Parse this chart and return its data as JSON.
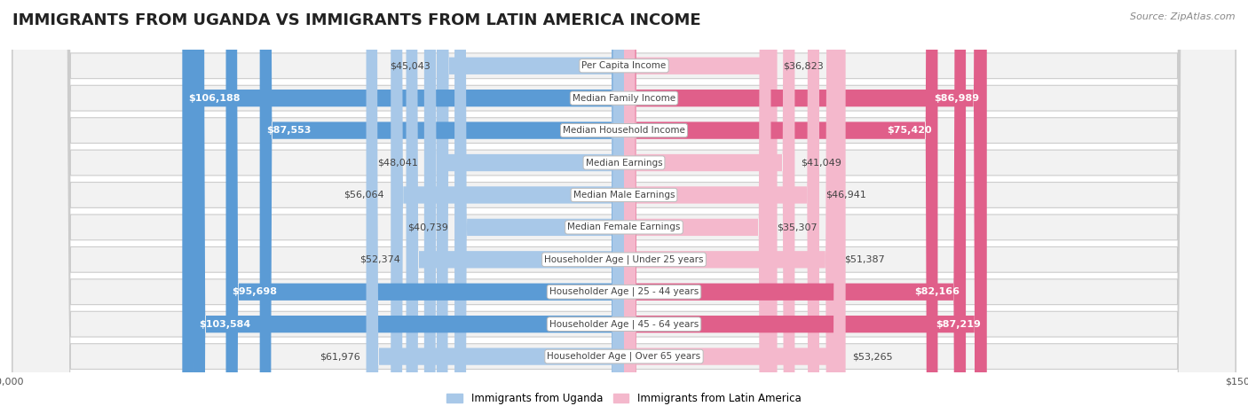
{
  "title": "IMMIGRANTS FROM UGANDA VS IMMIGRANTS FROM LATIN AMERICA INCOME",
  "source": "Source: ZipAtlas.com",
  "categories": [
    "Per Capita Income",
    "Median Family Income",
    "Median Household Income",
    "Median Earnings",
    "Median Male Earnings",
    "Median Female Earnings",
    "Householder Age | Under 25 years",
    "Householder Age | 25 - 44 years",
    "Householder Age | 45 - 64 years",
    "Householder Age | Over 65 years"
  ],
  "uganda_values": [
    45043,
    106188,
    87553,
    48041,
    56064,
    40739,
    52374,
    95698,
    103584,
    61976
  ],
  "latin_values": [
    36823,
    86989,
    75420,
    41049,
    46941,
    35307,
    51387,
    82166,
    87219,
    53265
  ],
  "uganda_labels": [
    "$45,043",
    "$106,188",
    "$87,553",
    "$48,041",
    "$56,064",
    "$40,739",
    "$52,374",
    "$95,698",
    "$103,584",
    "$61,976"
  ],
  "latin_labels": [
    "$36,823",
    "$86,989",
    "$75,420",
    "$41,049",
    "$46,941",
    "$35,307",
    "$51,387",
    "$82,166",
    "$87,219",
    "$53,265"
  ],
  "uganda_color_light": "#a8c8e8",
  "uganda_color_dark": "#5b9bd5",
  "latin_color_light": "#f4b8cc",
  "latin_color_dark": "#e05f8a",
  "uganda_inside_threshold": 70000,
  "latin_inside_threshold": 70000,
  "max_value": 150000,
  "legend_uganda": "Immigrants from Uganda",
  "legend_latin": "Immigrants from Latin America",
  "title_fontsize": 13,
  "label_fontsize": 8,
  "source_fontsize": 8
}
